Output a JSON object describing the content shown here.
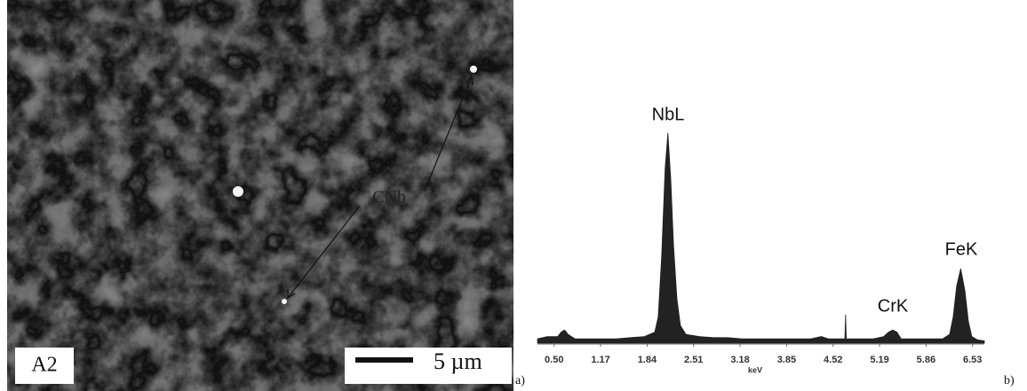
{
  "panel_a": {
    "sample_label": "A2",
    "scale_bar_label": "5 µm",
    "feature_label": "CNb",
    "panel_label": "a)"
  },
  "chart_data": {
    "type": "area",
    "x_label": "keV",
    "color": "#222222",
    "x": [
      0.26,
      0.4,
      0.55,
      0.6,
      0.65,
      0.7,
      0.8,
      1.0,
      1.2,
      1.4,
      1.6,
      1.8,
      1.95,
      2.0,
      2.05,
      2.1,
      2.14,
      2.18,
      2.22,
      2.27,
      2.32,
      2.4,
      2.6,
      2.8,
      3.0,
      3.2,
      3.4,
      3.6,
      3.8,
      4.0,
      4.2,
      4.35,
      4.45,
      4.6,
      4.69,
      4.7,
      4.71,
      4.9,
      5.1,
      5.25,
      5.32,
      5.38,
      5.44,
      5.5,
      5.7,
      5.85,
      5.95,
      6.1,
      6.2,
      6.25,
      6.3,
      6.36,
      6.42,
      6.47,
      6.52,
      6.6,
      6.7
    ],
    "values": [
      2,
      3,
      3,
      5,
      6,
      4,
      2,
      2,
      2,
      2,
      2.5,
      3,
      5,
      12,
      40,
      80,
      96,
      75,
      45,
      20,
      8,
      4,
      3,
      2.5,
      2.5,
      2,
      2,
      2,
      2,
      2,
      2,
      3,
      2,
      2,
      2,
      13,
      2,
      2,
      2,
      3,
      5,
      6,
      5,
      2,
      2,
      2,
      2,
      2,
      4,
      12,
      26,
      34,
      24,
      10,
      3,
      1.5,
      1
    ],
    "xlim": [
      0.26,
      6.7
    ],
    "xticks": [
      {
        "value": 0.5,
        "label": "0.50"
      },
      1.17,
      1.84,
      2.51,
      3.18,
      3.85,
      4.52,
      5.19,
      5.86,
      6.53
    ],
    "ylim": [
      0,
      100
    ],
    "annotations": [
      "NbL",
      "CrK",
      "FeK"
    ],
    "panel_label": "b)"
  }
}
